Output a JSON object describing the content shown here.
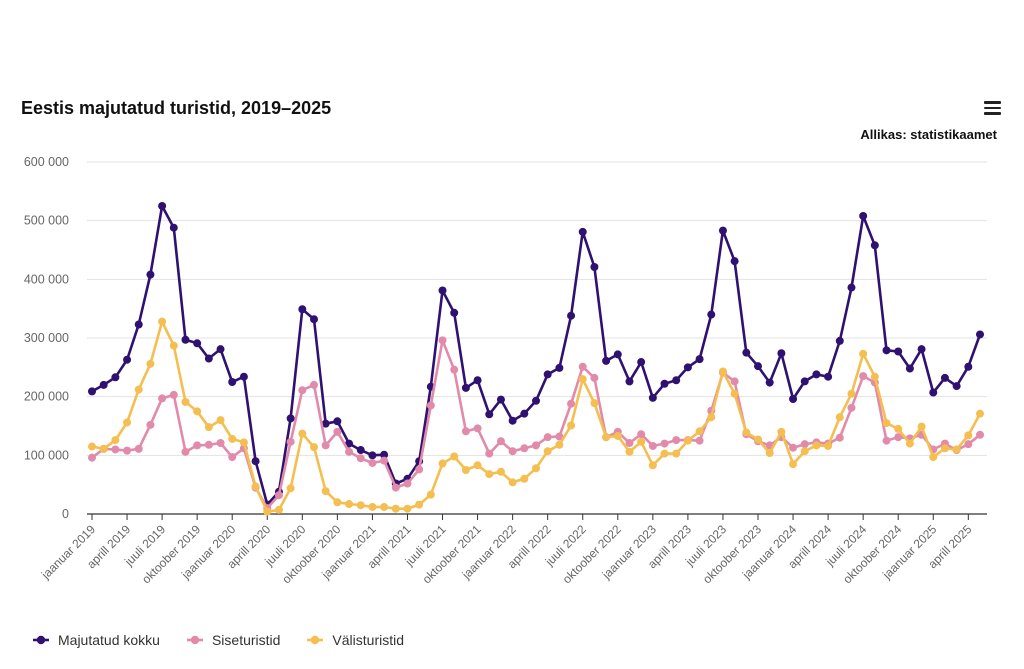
{
  "chart_data": {
    "type": "line",
    "title": "Eestis majutatud turistid, 2019–2025",
    "source": "Allikas: statistikaamet",
    "ylim": [
      0,
      600000
    ],
    "y_ticks": [
      {
        "value": 0,
        "label": "0"
      },
      {
        "value": 100000,
        "label": "100 000"
      },
      {
        "value": 200000,
        "label": "200 000"
      },
      {
        "value": 300000,
        "label": "300 000"
      },
      {
        "value": 400000,
        "label": "400 000"
      },
      {
        "value": 500000,
        "label": "500 000"
      },
      {
        "value": 600000,
        "label": "600 000"
      }
    ],
    "grid": true,
    "legend": "bottom-left",
    "x_tick_labels": [
      {
        "index": 0,
        "label": "jaanuar 2019"
      },
      {
        "index": 3,
        "label": "aprill 2019"
      },
      {
        "index": 6,
        "label": "juuli 2019"
      },
      {
        "index": 9,
        "label": "oktoober 2019"
      },
      {
        "index": 12,
        "label": "jaanuar 2020"
      },
      {
        "index": 15,
        "label": "aprill 2020"
      },
      {
        "index": 18,
        "label": "juuli 2020"
      },
      {
        "index": 21,
        "label": "oktoober 2020"
      },
      {
        "index": 24,
        "label": "jaanuar 2021"
      },
      {
        "index": 27,
        "label": "aprill 2021"
      },
      {
        "index": 30,
        "label": "juuli 2021"
      },
      {
        "index": 33,
        "label": "oktoober 2021"
      },
      {
        "index": 36,
        "label": "jaanuar 2022"
      },
      {
        "index": 39,
        "label": "aprill 2022"
      },
      {
        "index": 42,
        "label": "juuli 2022"
      },
      {
        "index": 45,
        "label": "oktoober 2022"
      },
      {
        "index": 48,
        "label": "jaanuar 2023"
      },
      {
        "index": 51,
        "label": "aprill 2023"
      },
      {
        "index": 54,
        "label": "juuli 2023"
      },
      {
        "index": 57,
        "label": "oktoober 2023"
      },
      {
        "index": 60,
        "label": "jaanuar 2024"
      },
      {
        "index": 63,
        "label": "aprill 2024"
      },
      {
        "index": 66,
        "label": "juuli 2024"
      },
      {
        "index": 69,
        "label": "oktoober 2024"
      },
      {
        "index": 72,
        "label": "jaanuar 2025"
      },
      {
        "index": 75,
        "label": "aprill 2025"
      }
    ],
    "series": [
      {
        "name": "Majutatud kokku",
        "color": "#2e1170",
        "values": [
          209000,
          220000,
          233000,
          263000,
          323000,
          408000,
          525000,
          488000,
          297000,
          291000,
          265000,
          281000,
          225000,
          234000,
          90000,
          16000,
          38000,
          163000,
          349000,
          332000,
          154000,
          158000,
          120000,
          109000,
          100000,
          101000,
          52000,
          60000,
          90000,
          217000,
          381000,
          343000,
          215000,
          228000,
          170000,
          195000,
          159000,
          171000,
          193000,
          238000,
          249000,
          338000,
          481000,
          421000,
          261000,
          272000,
          226000,
          259000,
          198000,
          222000,
          228000,
          250000,
          264000,
          340000,
          483000,
          431000,
          275000,
          252000,
          224000,
          274000,
          196000,
          226000,
          238000,
          234000,
          295000,
          386000,
          508000,
          458000,
          279000,
          277000,
          248000,
          281000,
          207000,
          232000,
          218000,
          251000,
          306000
        ]
      },
      {
        "name": "Siseturistid",
        "color": "#e28aaa",
        "values": [
          96000,
          111000,
          110000,
          108000,
          111000,
          152000,
          197000,
          203000,
          106000,
          117000,
          118000,
          121000,
          97000,
          112000,
          45000,
          10000,
          32000,
          123000,
          211000,
          220000,
          117000,
          140000,
          106000,
          95000,
          87000,
          91000,
          45000,
          52000,
          76000,
          185000,
          296000,
          246000,
          141000,
          146000,
          103000,
          124000,
          107000,
          112000,
          117000,
          131000,
          132000,
          188000,
          251000,
          232000,
          131000,
          140000,
          121000,
          136000,
          116000,
          120000,
          126000,
          126000,
          125000,
          176000,
          241000,
          226000,
          136000,
          124000,
          117000,
          131000,
          113000,
          119000,
          122000,
          120000,
          130000,
          181000,
          235000,
          224000,
          125000,
          131000,
          129000,
          135000,
          110000,
          120000,
          109000,
          119000,
          135000
        ]
      },
      {
        "name": "Välisturistid",
        "color": "#f5be50",
        "values": [
          115000,
          111000,
          126000,
          156000,
          212000,
          256000,
          328000,
          287000,
          191000,
          175000,
          148000,
          160000,
          128000,
          122000,
          47000,
          4000,
          7000,
          44000,
          137000,
          114000,
          39000,
          20000,
          17000,
          15000,
          12000,
          12000,
          9000,
          9000,
          16000,
          33000,
          86000,
          98000,
          75000,
          83000,
          68000,
          72000,
          54000,
          60000,
          78000,
          107000,
          118000,
          151000,
          230000,
          189000,
          131000,
          133000,
          106000,
          123000,
          83000,
          103000,
          103000,
          125000,
          141000,
          165000,
          243000,
          205000,
          139000,
          127000,
          104000,
          140000,
          85000,
          107000,
          117000,
          116000,
          165000,
          205000,
          273000,
          234000,
          155000,
          145000,
          120000,
          149000,
          97000,
          112000,
          110000,
          134000,
          171000
        ]
      }
    ]
  }
}
